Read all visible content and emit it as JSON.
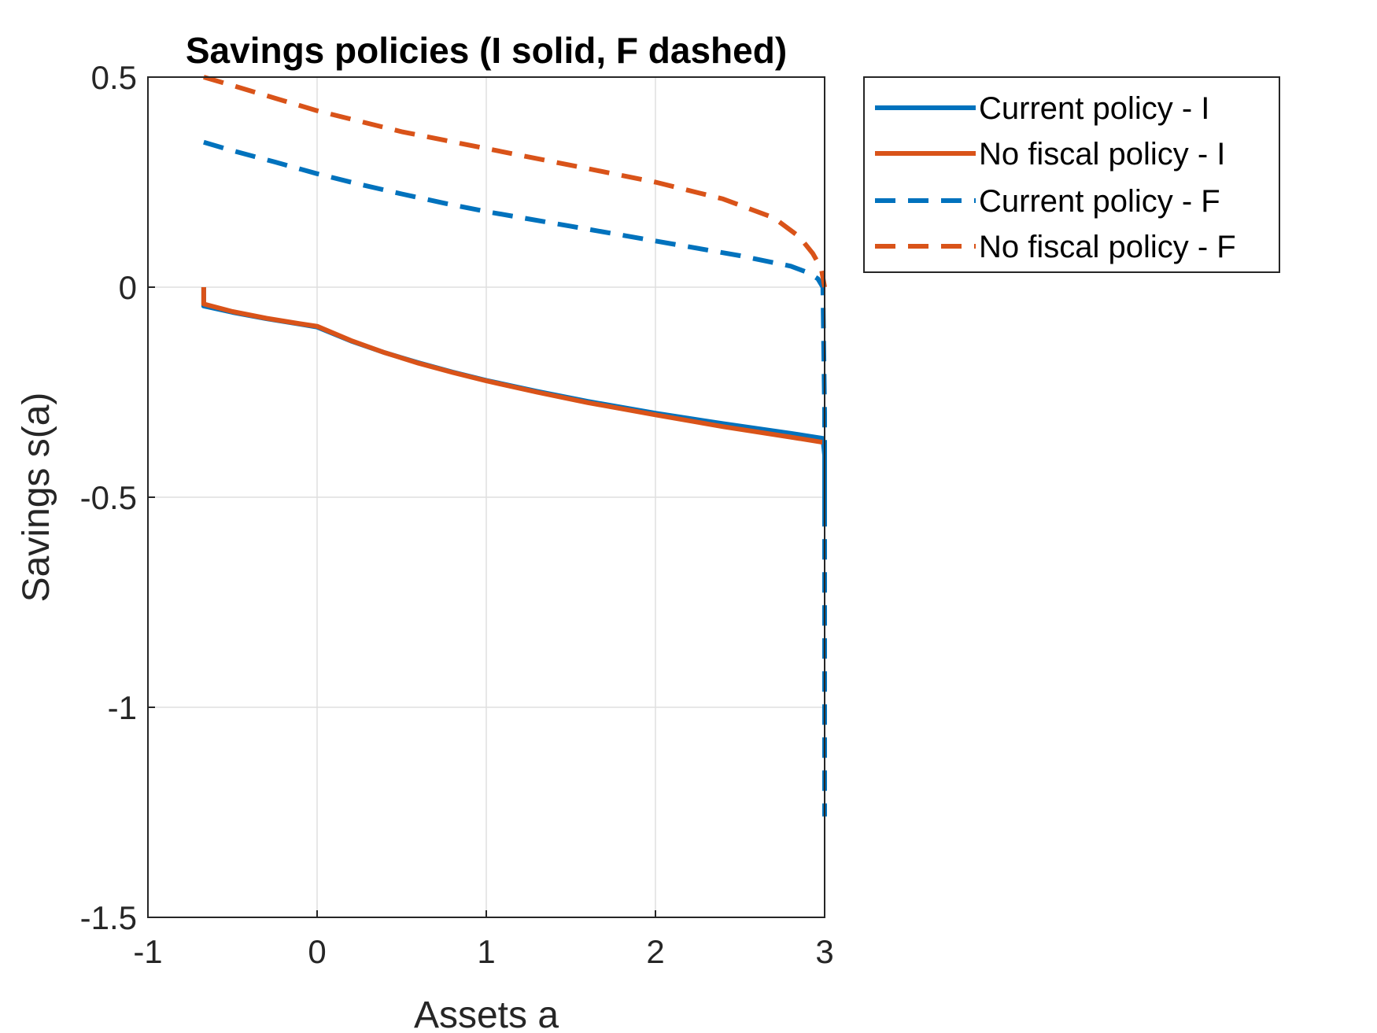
{
  "chart_data": {
    "type": "line",
    "title": "Savings policies (I solid, F dashed)",
    "xlabel": "Assets a",
    "ylabel": "Savings s(a)",
    "xlim": [
      -1,
      3
    ],
    "ylim": [
      -1.5,
      0.5
    ],
    "xticks": [
      "-1",
      "0",
      "1",
      "2",
      "3"
    ],
    "yticks": [
      "-1.5",
      "-1",
      "-0.5",
      "0",
      "0.5"
    ],
    "grid": true,
    "legend_position": "outside-top-right",
    "colors": {
      "blue": "#0072BD",
      "orange": "#D95319"
    },
    "series": [
      {
        "name": "Current policy - I",
        "color": "#0072BD",
        "style": "solid",
        "x": [
          -0.67,
          -0.67,
          -0.5,
          -0.3,
          -0.1,
          0.0,
          0.2,
          0.4,
          0.6,
          0.8,
          1.0,
          1.3,
          1.6,
          2.0,
          2.4,
          2.8,
          2.99,
          3.0,
          3.0
        ],
        "y": [
          0.0,
          -0.045,
          -0.06,
          -0.075,
          -0.088,
          -0.095,
          -0.128,
          -0.156,
          -0.18,
          -0.202,
          -0.222,
          -0.248,
          -0.272,
          -0.3,
          -0.325,
          -0.348,
          -0.36,
          -0.4,
          -0.53
        ]
      },
      {
        "name": "No fiscal policy - I",
        "color": "#D95319",
        "style": "solid",
        "x": [
          -0.67,
          -0.67,
          -0.5,
          -0.3,
          -0.1,
          0.0,
          0.2,
          0.4,
          0.6,
          0.8,
          1.0,
          1.3,
          1.6,
          2.0,
          2.4,
          2.8,
          3.0
        ],
        "y": [
          0.0,
          -0.04,
          -0.058,
          -0.074,
          -0.087,
          -0.093,
          -0.127,
          -0.156,
          -0.181,
          -0.203,
          -0.223,
          -0.25,
          -0.275,
          -0.304,
          -0.332,
          -0.357,
          -0.37
        ]
      },
      {
        "name": "Current policy - F",
        "color": "#0072BD",
        "style": "dashed",
        "x": [
          -0.67,
          -0.5,
          -0.25,
          0.0,
          0.25,
          0.5,
          0.75,
          1.0,
          1.5,
          2.0,
          2.5,
          2.8,
          2.9,
          2.96,
          2.99,
          3.0,
          3.0
        ],
        "y": [
          0.345,
          0.325,
          0.298,
          0.27,
          0.245,
          0.222,
          0.2,
          0.18,
          0.145,
          0.11,
          0.075,
          0.05,
          0.035,
          0.02,
          0.0,
          -0.3,
          -1.26
        ]
      },
      {
        "name": "No fiscal policy - F",
        "color": "#D95319",
        "style": "dashed",
        "x": [
          -0.67,
          -0.5,
          -0.25,
          0.0,
          0.25,
          0.5,
          0.75,
          1.0,
          1.5,
          2.0,
          2.4,
          2.7,
          2.85,
          2.93,
          2.98,
          3.0
        ],
        "y": [
          0.5,
          0.48,
          0.45,
          0.42,
          0.395,
          0.37,
          0.35,
          0.33,
          0.29,
          0.25,
          0.21,
          0.165,
          0.12,
          0.08,
          0.045,
          0.0
        ]
      }
    ]
  }
}
